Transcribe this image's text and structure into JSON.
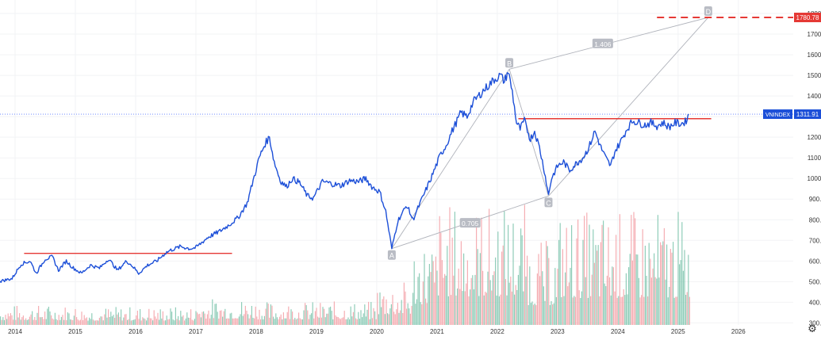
{
  "chart_data": {
    "type": "line",
    "symbol": "VNINDEX",
    "last_value": "1311.91",
    "target_label": "1780.78",
    "colors": {
      "price": "#1c4fd8",
      "resistance": "#e53935",
      "target": "#e53935",
      "vol_up": "#7cc4ad",
      "vol_down": "#f3a0a6",
      "crosshair": "#5b7bff",
      "projection": "#b0b3bb",
      "badge_bg": "#b9bcc4",
      "axis_text": "#333333",
      "grid": "#f2f3f5"
    },
    "x_axis": {
      "range": [
        2013.75,
        2026.95
      ],
      "ticks": [
        2014,
        2015,
        2016,
        2017,
        2018,
        2019,
        2020,
        2021,
        2022,
        2023,
        2024,
        2025,
        2026
      ],
      "labels": [
        "2014",
        "2015",
        "2016",
        "2017",
        "2018",
        "2019",
        "2020",
        "2021",
        "2022",
        "2023",
        "2024",
        "2025",
        "2026"
      ]
    },
    "y_axis": {
      "range": [
        290,
        1850
      ],
      "ticks": [
        300,
        400,
        500,
        600,
        700,
        800,
        900,
        1000,
        1100,
        1200,
        1300,
        1400,
        1500,
        1600,
        1700,
        1800
      ],
      "labels": [
        "300.00",
        "400.00",
        "500.00",
        "600.00",
        "700.00",
        "800.00",
        "900.00",
        "1000.00",
        "1100.00",
        "1200.00",
        "1300.00",
        "1400.00",
        "1500.00",
        "1600.00",
        "1700.00",
        "1800.00"
      ]
    },
    "price_series": {
      "name": "VNINDEX",
      "points": [
        [
          2013.75,
          502
        ],
        [
          2013.95,
          515
        ],
        [
          2014.1,
          585
        ],
        [
          2014.25,
          600
        ],
        [
          2014.35,
          540
        ],
        [
          2014.5,
          610
        ],
        [
          2014.62,
          620
        ],
        [
          2014.72,
          555
        ],
        [
          2014.85,
          600
        ],
        [
          2014.95,
          570
        ],
        [
          2015.1,
          540
        ],
        [
          2015.25,
          580
        ],
        [
          2015.4,
          565
        ],
        [
          2015.55,
          610
        ],
        [
          2015.7,
          555
        ],
        [
          2015.85,
          600
        ],
        [
          2015.95,
          575
        ],
        [
          2016.05,
          540
        ],
        [
          2016.2,
          580
        ],
        [
          2016.35,
          600
        ],
        [
          2016.5,
          640
        ],
        [
          2016.6,
          655
        ],
        [
          2016.75,
          670
        ],
        [
          2016.9,
          660
        ],
        [
          2017.0,
          665
        ],
        [
          2017.2,
          715
        ],
        [
          2017.4,
          745
        ],
        [
          2017.55,
          775
        ],
        [
          2017.7,
          810
        ],
        [
          2017.85,
          880
        ],
        [
          2017.95,
          990
        ],
        [
          2018.05,
          1100
        ],
        [
          2018.15,
          1170
        ],
        [
          2018.22,
          1200
        ],
        [
          2018.3,
          1080
        ],
        [
          2018.4,
          990
        ],
        [
          2018.5,
          960
        ],
        [
          2018.6,
          1000
        ],
        [
          2018.72,
          980
        ],
        [
          2018.85,
          915
        ],
        [
          2018.95,
          905
        ],
        [
          2019.1,
          985
        ],
        [
          2019.25,
          975
        ],
        [
          2019.4,
          965
        ],
        [
          2019.55,
          990
        ],
        [
          2019.7,
          985
        ],
        [
          2019.82,
          1000
        ],
        [
          2019.92,
          960
        ],
        [
          2020.05,
          935
        ],
        [
          2020.15,
          840
        ],
        [
          2020.25,
          660
        ],
        [
          2020.35,
          795
        ],
        [
          2020.5,
          870
        ],
        [
          2020.6,
          800
        ],
        [
          2020.75,
          900
        ],
        [
          2020.9,
          1000
        ],
        [
          2021.05,
          1110
        ],
        [
          2021.15,
          1160
        ],
        [
          2021.25,
          1230
        ],
        [
          2021.4,
          1320
        ],
        [
          2021.5,
          1300
        ],
        [
          2021.6,
          1370
        ],
        [
          2021.75,
          1420
        ],
        [
          2021.85,
          1450
        ],
        [
          2021.95,
          1480
        ],
        [
          2022.05,
          1500
        ],
        [
          2022.12,
          1470
        ],
        [
          2022.18,
          1520
        ],
        [
          2022.25,
          1420
        ],
        [
          2022.32,
          1270
        ],
        [
          2022.38,
          1240
        ],
        [
          2022.45,
          1280
        ],
        [
          2022.55,
          1190
        ],
        [
          2022.62,
          1230
        ],
        [
          2022.7,
          1150
        ],
        [
          2022.78,
          1040
        ],
        [
          2022.85,
          920
        ],
        [
          2022.9,
          1000
        ],
        [
          2023.0,
          1060
        ],
        [
          2023.1,
          1080
        ],
        [
          2023.2,
          1040
        ],
        [
          2023.3,
          1070
        ],
        [
          2023.42,
          1100
        ],
        [
          2023.52,
          1150
        ],
        [
          2023.62,
          1230
        ],
        [
          2023.72,
          1150
        ],
        [
          2023.8,
          1100
        ],
        [
          2023.88,
          1060
        ],
        [
          2023.95,
          1130
        ],
        [
          2024.05,
          1180
        ],
        [
          2024.15,
          1240
        ],
        [
          2024.25,
          1280
        ],
        [
          2024.35,
          1270
        ],
        [
          2024.45,
          1260
        ],
        [
          2024.55,
          1270
        ],
        [
          2024.65,
          1255
        ],
        [
          2024.75,
          1270
        ],
        [
          2024.85,
          1250
        ],
        [
          2024.95,
          1270
        ],
        [
          2025.05,
          1265
        ],
        [
          2025.12,
          1275
        ],
        [
          2025.18,
          1310
        ]
      ]
    },
    "volume_bars": {
      "axis_max": 1000,
      "segments": [
        {
          "from": 2013.75,
          "to": 2015.0,
          "level": 60
        },
        {
          "from": 2015.0,
          "to": 2017.0,
          "level": 55
        },
        {
          "from": 2017.0,
          "to": 2018.0,
          "level": 80
        },
        {
          "from": 2018.0,
          "to": 2020.0,
          "level": 70
        },
        {
          "from": 2020.0,
          "to": 2020.6,
          "level": 130
        },
        {
          "from": 2020.6,
          "to": 2021.0,
          "level": 260
        },
        {
          "from": 2021.0,
          "to": 2022.5,
          "level": 360
        },
        {
          "from": 2022.5,
          "to": 2023.0,
          "level": 250
        },
        {
          "from": 2023.0,
          "to": 2025.2,
          "level": 340
        }
      ]
    },
    "support_line_2014": {
      "x": [
        2014.15,
        2017.6
      ],
      "y": 637
    },
    "resistance_line": {
      "x": [
        2022.35,
        2025.55
      ],
      "y": 1290
    },
    "target_line": {
      "x": [
        2024.65,
        2026.95
      ],
      "y": 1780.78
    },
    "current_price_line": {
      "y": 1311.91
    },
    "abcd_pattern": {
      "points": [
        {
          "label": "A",
          "x": 2020.25,
          "y": 660
        },
        {
          "label": "B",
          "x": 2022.2,
          "y": 1530
        },
        {
          "label": "C",
          "x": 2022.85,
          "y": 915
        },
        {
          "label": "D",
          "x": 2025.5,
          "y": 1780.78
        }
      ],
      "ratios": [
        {
          "label": "1.406",
          "x": 2023.75,
          "y": 1655
        },
        {
          "label": "0.705",
          "x": 2021.55,
          "y": 785
        }
      ]
    }
  },
  "ui": {
    "settings_icon": "gear-icon",
    "settings_glyph": "⚙"
  }
}
